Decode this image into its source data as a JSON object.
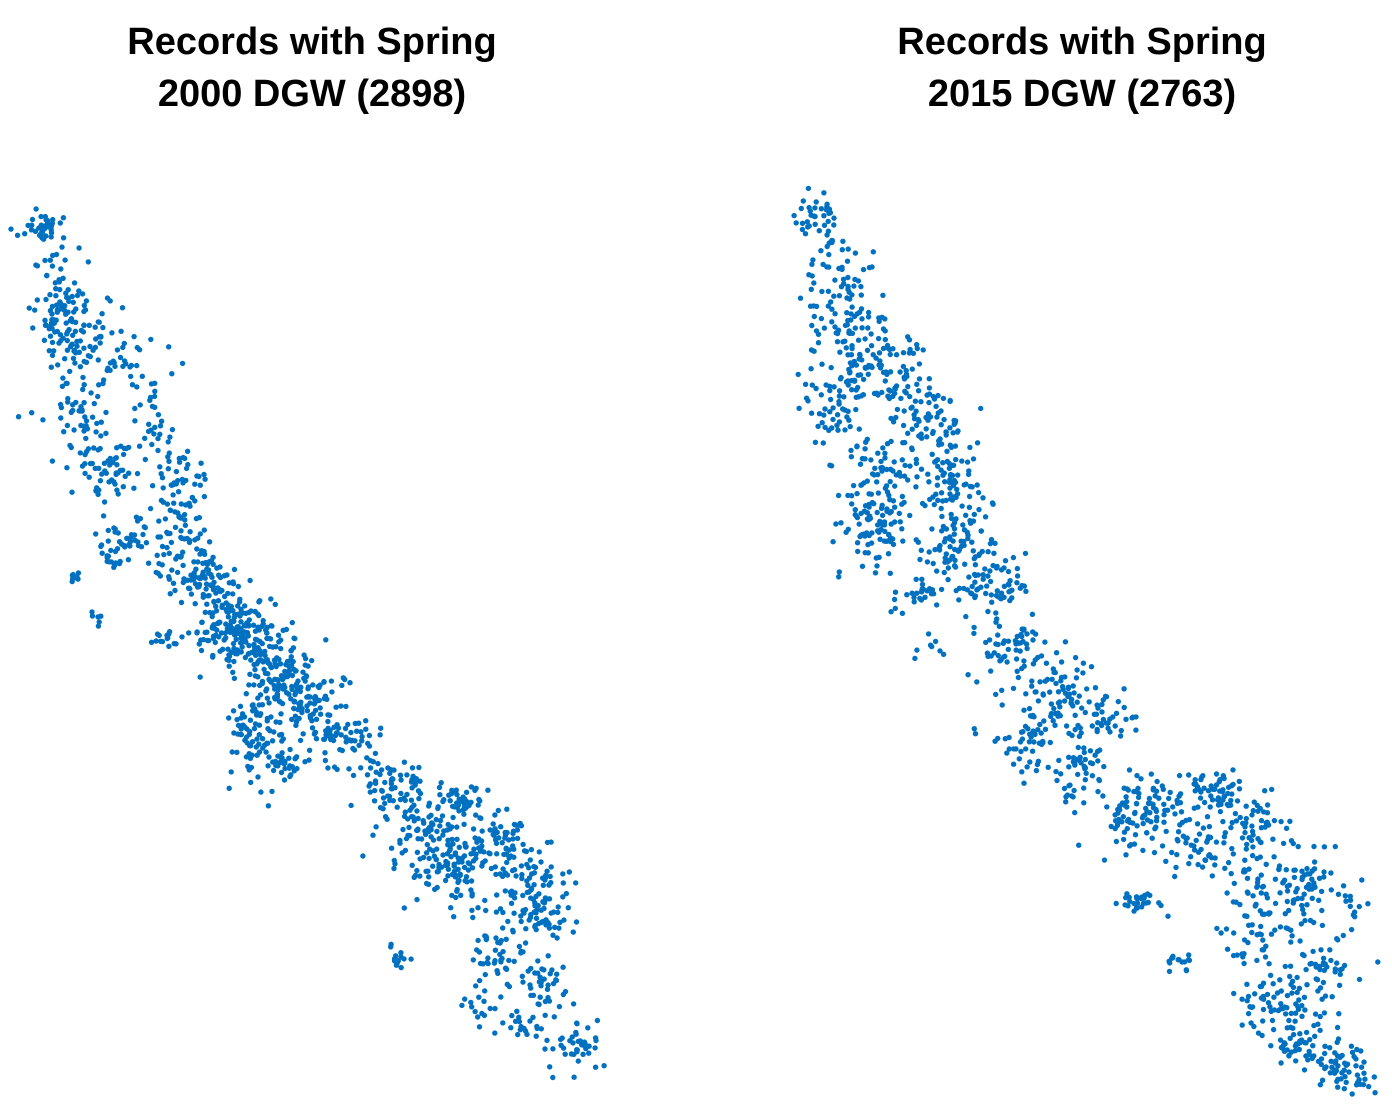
{
  "panels": [
    {
      "title_line1": "Records with Spring",
      "title_line2": "2000 DGW (2898)",
      "record_count": 2898
    },
    {
      "title_line1": "Records with Spring",
      "title_line2": "2015 DGW (2763)",
      "record_count": 2763
    }
  ],
  "marker_color": "#0070C0"
}
